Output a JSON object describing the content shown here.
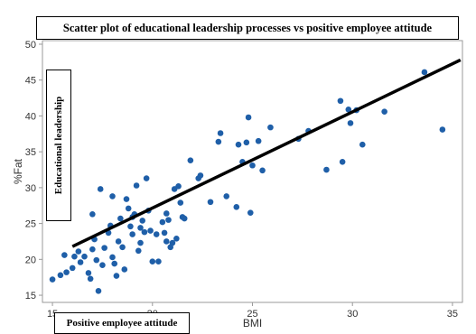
{
  "chart_data": {
    "type": "scatter",
    "title": "Scatter plot of educational leadership processes vs positive employee attitude",
    "xlabel": "BMI",
    "ylabel": "%Fat",
    "overlay_y_label": "Educational leadership",
    "overlay_x_label": "Positive employee attitude",
    "xlim": [
      14.5,
      35.5
    ],
    "ylim": [
      14,
      50.5
    ],
    "xticks": [
      15,
      20,
      25,
      30,
      35
    ],
    "yticks": [
      15,
      20,
      25,
      30,
      35,
      40,
      45,
      50
    ],
    "grid": false,
    "point_color": "#1f5fa8",
    "line_color": "#000000",
    "points": [
      {
        "x": 15.0,
        "y": 17.2
      },
      {
        "x": 15.4,
        "y": 17.8
      },
      {
        "x": 15.6,
        "y": 20.6
      },
      {
        "x": 15.7,
        "y": 18.2
      },
      {
        "x": 16.0,
        "y": 18.8
      },
      {
        "x": 16.1,
        "y": 20.4
      },
      {
        "x": 16.3,
        "y": 21.1
      },
      {
        "x": 16.4,
        "y": 19.6
      },
      {
        "x": 16.6,
        "y": 20.4
      },
      {
        "x": 16.8,
        "y": 18.1
      },
      {
        "x": 16.9,
        "y": 17.3
      },
      {
        "x": 17.0,
        "y": 21.4
      },
      {
        "x": 17.0,
        "y": 26.3
      },
      {
        "x": 17.1,
        "y": 22.8
      },
      {
        "x": 17.2,
        "y": 19.9
      },
      {
        "x": 17.3,
        "y": 15.6
      },
      {
        "x": 17.4,
        "y": 29.8
      },
      {
        "x": 17.5,
        "y": 19.2
      },
      {
        "x": 17.6,
        "y": 21.6
      },
      {
        "x": 17.8,
        "y": 23.7
      },
      {
        "x": 17.9,
        "y": 24.7
      },
      {
        "x": 18.0,
        "y": 28.8
      },
      {
        "x": 18.0,
        "y": 20.3
      },
      {
        "x": 18.1,
        "y": 19.4
      },
      {
        "x": 18.2,
        "y": 17.7
      },
      {
        "x": 18.3,
        "y": 22.5
      },
      {
        "x": 18.4,
        "y": 25.7
      },
      {
        "x": 18.5,
        "y": 21.7
      },
      {
        "x": 18.6,
        "y": 18.6
      },
      {
        "x": 18.7,
        "y": 28.4
      },
      {
        "x": 18.8,
        "y": 27.1
      },
      {
        "x": 18.9,
        "y": 24.6
      },
      {
        "x": 19.0,
        "y": 25.9
      },
      {
        "x": 19.0,
        "y": 23.5
      },
      {
        "x": 19.1,
        "y": 26.3
      },
      {
        "x": 19.2,
        "y": 30.3
      },
      {
        "x": 19.3,
        "y": 21.2
      },
      {
        "x": 19.4,
        "y": 24.4
      },
      {
        "x": 19.4,
        "y": 22.3
      },
      {
        "x": 19.5,
        "y": 25.4
      },
      {
        "x": 19.6,
        "y": 23.8
      },
      {
        "x": 19.7,
        "y": 31.3
      },
      {
        "x": 19.8,
        "y": 26.8
      },
      {
        "x": 19.9,
        "y": 24.0
      },
      {
        "x": 20.0,
        "y": 19.7
      },
      {
        "x": 20.2,
        "y": 23.5
      },
      {
        "x": 20.3,
        "y": 19.7
      },
      {
        "x": 20.5,
        "y": 25.2
      },
      {
        "x": 20.6,
        "y": 23.7
      },
      {
        "x": 20.7,
        "y": 26.4
      },
      {
        "x": 20.7,
        "y": 22.5
      },
      {
        "x": 20.8,
        "y": 25.5
      },
      {
        "x": 20.9,
        "y": 21.7
      },
      {
        "x": 21.0,
        "y": 22.3
      },
      {
        "x": 21.1,
        "y": 29.8
      },
      {
        "x": 21.2,
        "y": 22.9
      },
      {
        "x": 21.3,
        "y": 30.2
      },
      {
        "x": 21.4,
        "y": 27.9
      },
      {
        "x": 21.5,
        "y": 25.9
      },
      {
        "x": 21.6,
        "y": 25.7
      },
      {
        "x": 21.9,
        "y": 33.8
      },
      {
        "x": 22.3,
        "y": 31.3
      },
      {
        "x": 22.4,
        "y": 31.7
      },
      {
        "x": 22.9,
        "y": 28.0
      },
      {
        "x": 23.3,
        "y": 36.4
      },
      {
        "x": 23.4,
        "y": 37.6
      },
      {
        "x": 23.7,
        "y": 28.8
      },
      {
        "x": 24.2,
        "y": 27.3
      },
      {
        "x": 24.3,
        "y": 36.0
      },
      {
        "x": 24.5,
        "y": 33.6
      },
      {
        "x": 24.7,
        "y": 36.3
      },
      {
        "x": 24.8,
        "y": 39.8
      },
      {
        "x": 24.9,
        "y": 26.5
      },
      {
        "x": 25.0,
        "y": 33.1
      },
      {
        "x": 25.3,
        "y": 36.5
      },
      {
        "x": 25.5,
        "y": 32.4
      },
      {
        "x": 25.9,
        "y": 38.4
      },
      {
        "x": 27.3,
        "y": 36.8
      },
      {
        "x": 27.8,
        "y": 37.9
      },
      {
        "x": 28.7,
        "y": 32.5
      },
      {
        "x": 29.4,
        "y": 42.1
      },
      {
        "x": 29.5,
        "y": 33.6
      },
      {
        "x": 29.8,
        "y": 40.9
      },
      {
        "x": 29.9,
        "y": 39.0
      },
      {
        "x": 30.2,
        "y": 40.8
      },
      {
        "x": 30.5,
        "y": 36.0
      },
      {
        "x": 31.6,
        "y": 40.6
      },
      {
        "x": 33.6,
        "y": 46.1
      },
      {
        "x": 34.5,
        "y": 38.1
      }
    ],
    "fit_line": {
      "x1": 16.0,
      "y1": 21.8,
      "x2": 35.4,
      "y2": 47.8
    }
  }
}
